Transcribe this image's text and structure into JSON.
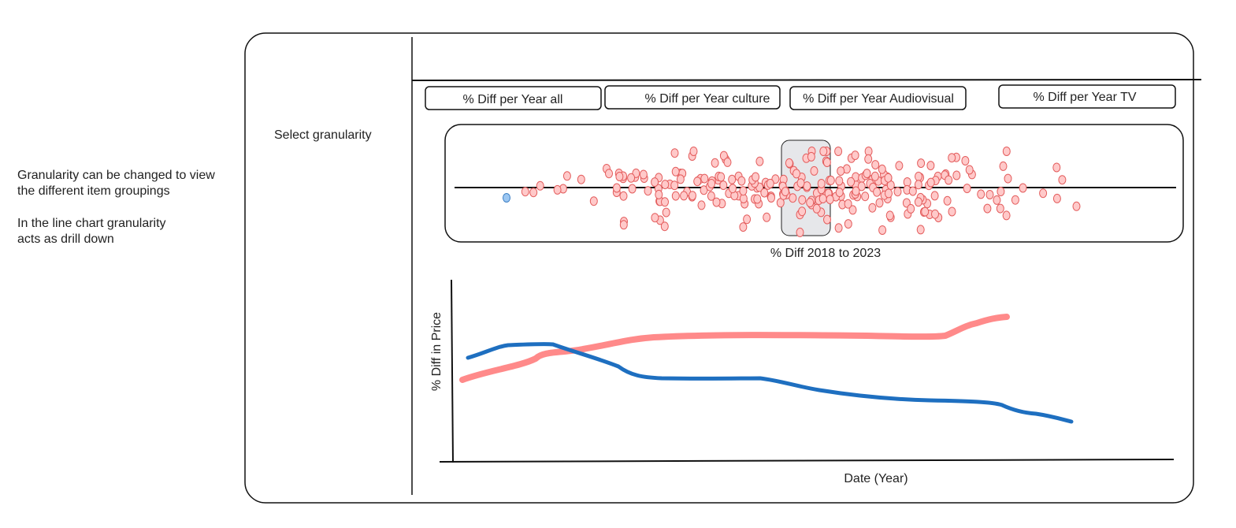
{
  "notes": [
    {
      "lines": [
        "Granularity can be changed to view",
        "the different item groupings"
      ]
    },
    {
      "lines": [
        "In the line chart granularity",
        "acts as drill down"
      ]
    }
  ],
  "sidebar": {
    "label": "Select granularity"
  },
  "buttons": [
    "% Diff per Year all",
    "% Diff per Year culture",
    "% Diff per Year Audiovisual",
    "% Diff per Year TV"
  ],
  "strip_chart": {
    "axis_label": "% Diff 2018 to 2023"
  },
  "line_chart": {
    "y_label": "% Diff in Price",
    "x_label": "Date (Year)"
  }
}
